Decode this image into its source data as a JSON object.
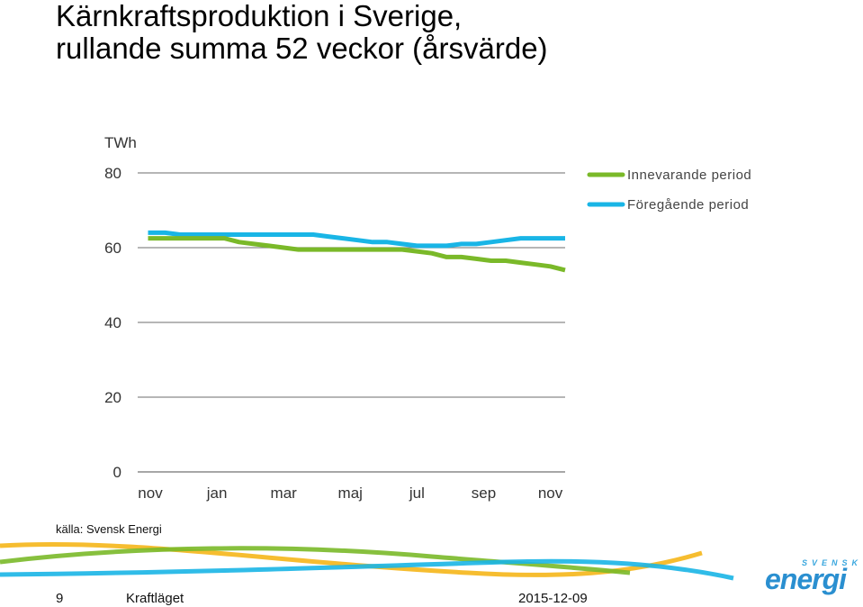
{
  "slide": {
    "title_line1": "Kärnkraftsproduktion i Sverige,",
    "title_line2": "rullande summa 52 veckor (årsvärde)",
    "source": "källa: Svensk Energi",
    "page_number": "9",
    "footer_name": "Kraftläget",
    "date": "2015-12-09",
    "logo_small": "SVENSK",
    "logo_big": "energi"
  },
  "chart_data": {
    "type": "line",
    "ylabel": "TWh",
    "ylim": [
      0,
      80
    ],
    "yticks": [
      0,
      20,
      40,
      60,
      80
    ],
    "grid": true,
    "legend_position": "top-right",
    "x_ticks": [
      "nov",
      "jan",
      "mar",
      "maj",
      "jul",
      "sep",
      "nov"
    ],
    "x_tick_positions": [
      0,
      9,
      18,
      27,
      36,
      45,
      54
    ],
    "x_range": [
      -1.7,
      56
    ],
    "series": [
      {
        "name": "Innevarande period",
        "color": "#7ab929",
        "x": [
          -0.3,
          2,
          4,
          6,
          8,
          10,
          12,
          14,
          16,
          18,
          20,
          22,
          24,
          26,
          28,
          30,
          32,
          34,
          36,
          38,
          40,
          42,
          44,
          46,
          48,
          50,
          52,
          54,
          56
        ],
        "values": [
          62.5,
          62.5,
          62.5,
          62.5,
          62.5,
          62.5,
          61.5,
          61,
          60.5,
          60,
          59.5,
          59.5,
          59.5,
          59.5,
          59.5,
          59.5,
          59.5,
          59.5,
          59,
          58.5,
          57.5,
          57.5,
          57,
          56.5,
          56.5,
          56,
          55.5,
          55,
          54
        ]
      },
      {
        "name": "Föregående period",
        "color": "#19b5e6",
        "x": [
          -0.3,
          2,
          4,
          6,
          8,
          10,
          12,
          14,
          16,
          18,
          20,
          22,
          24,
          26,
          28,
          30,
          32,
          34,
          36,
          38,
          40,
          42,
          44,
          46,
          48,
          50,
          52,
          54,
          56
        ],
        "values": [
          64,
          64,
          63.5,
          63.5,
          63.5,
          63.5,
          63.5,
          63.5,
          63.5,
          63.5,
          63.5,
          63.5,
          63,
          62.5,
          62,
          61.5,
          61.5,
          61,
          60.5,
          60.5,
          60.5,
          61,
          61,
          61.5,
          62,
          62.5,
          62.5,
          62.5,
          62.5
        ]
      }
    ]
  },
  "colors": {
    "green": "#7ab929",
    "blue": "#19b5e6",
    "yellow": "#f5b61a",
    "grid": "#8a8a8a"
  }
}
